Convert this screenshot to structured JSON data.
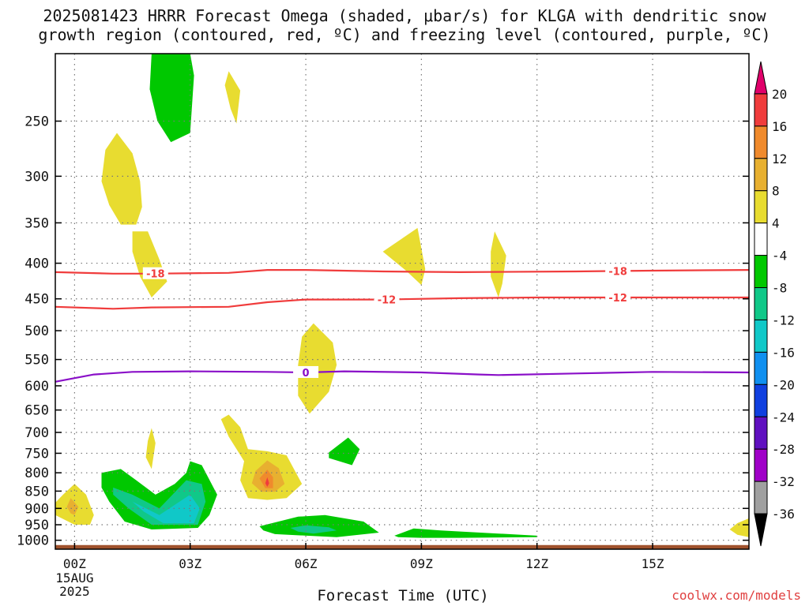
{
  "title": {
    "line1": "2025081423 HRRR Forecast Omega (shaded, μbar/s) for KLGA with dendritic snow",
    "line2": "growth region (contoured, red, ºC) and freezing level (contoured, purple, ºC)"
  },
  "credit": "coolwx.com/models",
  "chart_data": {
    "type": "contour",
    "title": "2025081423 HRRR Forecast Omega (shaded, μbar/s) for KLGA with dendritic snow growth region (contoured, red, ºC) and freezing level (contoured, purple, ºC)",
    "xlabel": "Forecast Time (UTC)",
    "ylabel": "",
    "xlim": [
      -0.5,
      17.5
    ],
    "ylim": [
      1030,
      200
    ],
    "x_ticks": [
      {
        "value": 0,
        "label": "00Z",
        "sub": [
          "15AUG",
          "2025"
        ]
      },
      {
        "value": 3,
        "label": "03Z"
      },
      {
        "value": 6,
        "label": "06Z"
      },
      {
        "value": 9,
        "label": "09Z"
      },
      {
        "value": 12,
        "label": "12Z"
      },
      {
        "value": 15,
        "label": "15Z"
      }
    ],
    "y_ticks": [
      250,
      300,
      350,
      400,
      450,
      500,
      550,
      600,
      650,
      700,
      750,
      800,
      850,
      900,
      950,
      1000
    ],
    "grid": true,
    "colorbar": {
      "labels": [
        "20",
        "16",
        "12",
        "8",
        "4",
        "-4",
        "-8",
        "-12",
        "-16",
        "-20",
        "-24",
        "-28",
        "-32",
        "-36"
      ],
      "colors": [
        "#e0006a",
        "#f03c3c",
        "#f08a2c",
        "#e8b030",
        "#e8dc30",
        "#ffffff",
        "#00c800",
        "#10c888",
        "#10c8c8",
        "#1090f0",
        "#1040e0",
        "#6010c0",
        "#a000c8",
        "#a0a0a0",
        "#000000"
      ]
    },
    "ground_color": "#a0522d",
    "contour_lines": [
      {
        "color": "#f03c3c",
        "label": "-18",
        "points": [
          [
            -0.5,
            412
          ],
          [
            1,
            414
          ],
          [
            2,
            414
          ],
          [
            4,
            413
          ],
          [
            5,
            409
          ],
          [
            6,
            409
          ],
          [
            8,
            411
          ],
          [
            10,
            412
          ],
          [
            13,
            411
          ],
          [
            15,
            410
          ],
          [
            17.5,
            409
          ]
        ],
        "label_x": [
          2.1,
          14.1
        ]
      },
      {
        "color": "#f03c3c",
        "label": "-12",
        "points": [
          [
            -0.5,
            462
          ],
          [
            1,
            465
          ],
          [
            2,
            463
          ],
          [
            4,
            462
          ],
          [
            5,
            455
          ],
          [
            6,
            451
          ],
          [
            8,
            451
          ],
          [
            10,
            449
          ],
          [
            12,
            448
          ],
          [
            14,
            448
          ],
          [
            17.5,
            448
          ]
        ],
        "label_x": [
          8.1,
          14.1
        ]
      },
      {
        "color": "#8a10c8",
        "label": "0",
        "points": [
          [
            -0.5,
            592
          ],
          [
            0,
            585
          ],
          [
            0.5,
            578
          ],
          [
            1.5,
            573
          ],
          [
            3,
            572
          ],
          [
            5,
            573
          ],
          [
            6,
            574
          ],
          [
            7,
            572
          ],
          [
            9,
            574
          ],
          [
            10.5,
            578
          ],
          [
            11,
            579
          ],
          [
            13,
            576
          ],
          [
            15,
            573
          ],
          [
            17.5,
            574
          ]
        ],
        "label_x": [
          6.0
        ]
      }
    ],
    "shaded_regions": [
      {
        "value_range": [
          -8,
          -4
        ],
        "color": "#00c800",
        "points": [
          [
            2.0,
            200
          ],
          [
            3.0,
            200
          ],
          [
            3.1,
            215
          ],
          [
            3.0,
            260
          ],
          [
            2.5,
            268
          ],
          [
            2.15,
            250
          ],
          [
            1.95,
            225
          ]
        ]
      },
      {
        "value_range": [
          4,
          8
        ],
        "color": "#e8dc30",
        "points": [
          [
            4.0,
            212
          ],
          [
            4.3,
            226
          ],
          [
            4.2,
            252
          ],
          [
            4.05,
            240
          ],
          [
            3.9,
            222
          ]
        ]
      },
      {
        "value_range": [
          4,
          8
        ],
        "color": "#e8dc30",
        "points": [
          [
            1.1,
            260
          ],
          [
            1.5,
            278
          ],
          [
            1.7,
            305
          ],
          [
            1.75,
            332
          ],
          [
            1.6,
            352
          ],
          [
            1.2,
            352
          ],
          [
            0.9,
            330
          ],
          [
            0.7,
            305
          ],
          [
            0.8,
            275
          ]
        ]
      },
      {
        "value_range": [
          4,
          8
        ],
        "color": "#e8dc30",
        "points": [
          [
            1.5,
            360
          ],
          [
            1.9,
            360
          ],
          [
            2.2,
            395
          ],
          [
            2.4,
            425
          ],
          [
            2.0,
            448
          ],
          [
            1.7,
            418
          ],
          [
            1.5,
            385
          ]
        ]
      },
      {
        "value_range": [
          4,
          8
        ],
        "color": "#e8dc30",
        "points": [
          [
            8.0,
            385
          ],
          [
            8.9,
            356
          ],
          [
            9.1,
            408
          ],
          [
            9.0,
            430
          ],
          [
            8.6,
            410
          ]
        ]
      },
      {
        "value_range": [
          4,
          8
        ],
        "color": "#e8dc30",
        "points": [
          [
            10.9,
            360
          ],
          [
            11.2,
            390
          ],
          [
            11.1,
            428
          ],
          [
            11.0,
            448
          ],
          [
            10.8,
            418
          ],
          [
            10.8,
            385
          ]
        ]
      },
      {
        "value_range": [
          4,
          8
        ],
        "color": "#e8dc30",
        "points": [
          [
            5.8,
            560
          ],
          [
            5.9,
            510
          ],
          [
            6.2,
            488
          ],
          [
            6.7,
            520
          ],
          [
            6.8,
            560
          ],
          [
            6.6,
            612
          ],
          [
            6.1,
            658
          ],
          [
            5.8,
            620
          ]
        ]
      },
      {
        "value_range": [
          4,
          8
        ],
        "color": "#e8dc30",
        "points": [
          [
            2.0,
            690
          ],
          [
            2.1,
            725
          ],
          [
            2.0,
            790
          ],
          [
            1.85,
            760
          ],
          [
            1.9,
            720
          ]
        ]
      },
      {
        "value_range": [
          4,
          8
        ],
        "color": "#e8dc30",
        "points": [
          [
            3.8,
            670
          ],
          [
            4.0,
            660
          ],
          [
            4.3,
            688
          ],
          [
            4.5,
            740
          ],
          [
            5.0,
            745
          ],
          [
            5.5,
            755
          ],
          [
            5.9,
            830
          ],
          [
            5.5,
            870
          ],
          [
            5.0,
            875
          ],
          [
            4.5,
            870
          ],
          [
            4.3,
            820
          ],
          [
            4.4,
            770
          ],
          [
            4.0,
            710
          ]
        ]
      },
      {
        "value_range": [
          8,
          12
        ],
        "color": "#e8b030",
        "points": [
          [
            5.0,
            768
          ],
          [
            5.3,
            788
          ],
          [
            5.45,
            830
          ],
          [
            5.2,
            852
          ],
          [
            4.85,
            852
          ],
          [
            4.6,
            828
          ],
          [
            4.7,
            795
          ]
        ]
      },
      {
        "value_range": [
          12,
          16
        ],
        "color": "#f08a2c",
        "points": [
          [
            5.0,
            792
          ],
          [
            5.15,
            812
          ],
          [
            5.15,
            842
          ],
          [
            4.95,
            842
          ],
          [
            4.8,
            815
          ]
        ]
      },
      {
        "value_range": [
          16,
          20
        ],
        "color": "#f03c3c",
        "points": [
          [
            5.0,
            812
          ],
          [
            5.05,
            828
          ],
          [
            5.0,
            838
          ],
          [
            4.95,
            828
          ]
        ]
      },
      {
        "value_range": [
          4,
          8
        ],
        "color": "#e8dc30",
        "points": [
          [
            0.0,
            830
          ],
          [
            0.3,
            860
          ],
          [
            0.5,
            920
          ],
          [
            0.4,
            950
          ],
          [
            0.0,
            950
          ],
          [
            -0.5,
            920
          ],
          [
            -0.6,
            895
          ],
          [
            -0.3,
            860
          ]
        ]
      },
      {
        "value_range": [
          8,
          12
        ],
        "color": "#e8b030",
        "points": [
          [
            -0.1,
            870
          ],
          [
            0.1,
            895
          ],
          [
            0.0,
            920
          ],
          [
            -0.1,
            915
          ],
          [
            -0.2,
            895
          ]
        ]
      },
      {
        "value_range": [
          -8,
          -4
        ],
        "color": "#00c800",
        "points": [
          [
            0.7,
            800
          ],
          [
            1.2,
            790
          ],
          [
            1.6,
            820
          ],
          [
            2.1,
            860
          ],
          [
            2.6,
            830
          ],
          [
            2.9,
            800
          ],
          [
            3.0,
            770
          ],
          [
            3.3,
            780
          ],
          [
            3.7,
            860
          ],
          [
            3.5,
            920
          ],
          [
            3.2,
            960
          ],
          [
            2.0,
            965
          ],
          [
            1.3,
            940
          ],
          [
            0.9,
            880
          ],
          [
            0.7,
            840
          ]
        ]
      },
      {
        "value_range": [
          -12,
          -8
        ],
        "color": "#10c888",
        "points": [
          [
            1.0,
            840
          ],
          [
            1.5,
            860
          ],
          [
            2.2,
            900
          ],
          [
            2.9,
            820
          ],
          [
            3.3,
            830
          ],
          [
            3.4,
            880
          ],
          [
            3.2,
            950
          ],
          [
            2.0,
            950
          ],
          [
            1.4,
            900
          ],
          [
            1.0,
            860
          ]
        ]
      },
      {
        "value_range": [
          -16,
          -12
        ],
        "color": "#10c8c8",
        "points": [
          [
            1.5,
            880
          ],
          [
            2.2,
            920
          ],
          [
            3.0,
            860
          ],
          [
            3.25,
            900
          ],
          [
            3.1,
            945
          ],
          [
            2.3,
            945
          ],
          [
            1.8,
            910
          ]
        ]
      },
      {
        "value_range": [
          -8,
          -4
        ],
        "color": "#00c800",
        "points": [
          [
            6.6,
            748
          ],
          [
            7.1,
            712
          ],
          [
            7.4,
            740
          ],
          [
            7.2,
            780
          ],
          [
            6.8,
            768
          ],
          [
            6.6,
            762
          ]
        ]
      },
      {
        "value_range": [
          -8,
          -4
        ],
        "color": "#00c800",
        "points": [
          [
            4.8,
            955
          ],
          [
            5.8,
            925
          ],
          [
            6.5,
            920
          ],
          [
            7.5,
            940
          ],
          [
            7.9,
            975
          ],
          [
            6.8,
            990
          ],
          [
            5.2,
            980
          ],
          [
            4.9,
            968
          ]
        ]
      },
      {
        "value_range": [
          -12,
          -8
        ],
        "color": "#10c888",
        "points": [
          [
            5.6,
            960
          ],
          [
            6.0,
            952
          ],
          [
            6.6,
            958
          ],
          [
            6.8,
            968
          ],
          [
            6.2,
            978
          ],
          [
            5.8,
            972
          ]
        ]
      },
      {
        "value_range": [
          -8,
          -4
        ],
        "color": "#00c800",
        "points": [
          [
            8.3,
            985
          ],
          [
            8.8,
            962
          ],
          [
            9.5,
            968
          ],
          [
            11,
            978
          ],
          [
            12,
            985
          ],
          [
            12,
            990
          ],
          [
            10,
            992
          ],
          [
            9.0,
            992
          ],
          [
            8.4,
            990
          ]
        ]
      },
      {
        "value_range": [
          4,
          8
        ],
        "color": "#e8dc30",
        "points": [
          [
            17.5,
            930
          ],
          [
            17.5,
            990
          ],
          [
            17.2,
            982
          ],
          [
            17.0,
            965
          ],
          [
            17.2,
            945
          ]
        ]
      }
    ]
  }
}
